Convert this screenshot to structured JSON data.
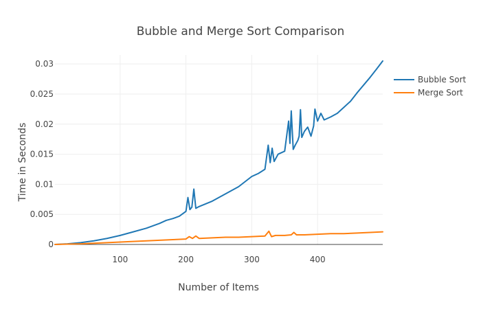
{
  "chart_data": {
    "type": "line",
    "title": "Bubble and Merge Sort Comparison",
    "xlabel": "Number of Items",
    "ylabel": "Time in Seconds",
    "xlim": [
      1,
      499
    ],
    "ylim": [
      0,
      0.0315
    ],
    "x_ticks": [
      100,
      200,
      300,
      400
    ],
    "y_ticks": [
      0,
      0.005,
      0.01,
      0.015,
      0.02,
      0.025,
      0.03
    ],
    "y_tick_labels": [
      "0",
      "0.005",
      "0.01",
      "0.015",
      "0.02",
      "0.025",
      "0.03"
    ],
    "grid": true,
    "legend_position": "top-right",
    "series": [
      {
        "name": "Bubble Sort",
        "color": "#1f77b4",
        "x": [
          1,
          20,
          40,
          60,
          80,
          100,
          120,
          140,
          160,
          170,
          180,
          190,
          200,
          203,
          206,
          209,
          212,
          215,
          220,
          240,
          260,
          280,
          300,
          310,
          320,
          325,
          328,
          331,
          334,
          340,
          350,
          356,
          358,
          360,
          363,
          366,
          370,
          372,
          374,
          376,
          380,
          385,
          390,
          394,
          396,
          400,
          405,
          410,
          420,
          430,
          440,
          450,
          460,
          470,
          480,
          490,
          499
        ],
        "y": [
          0.0,
          0.0001,
          0.0003,
          0.0006,
          0.001,
          0.0015,
          0.0021,
          0.0027,
          0.0035,
          0.004,
          0.0043,
          0.0047,
          0.0055,
          0.0078,
          0.0058,
          0.0062,
          0.0092,
          0.006,
          0.0063,
          0.0072,
          0.0084,
          0.0096,
          0.0113,
          0.0118,
          0.0125,
          0.0165,
          0.0136,
          0.016,
          0.0138,
          0.015,
          0.0155,
          0.0205,
          0.0168,
          0.0222,
          0.0158,
          0.0165,
          0.0173,
          0.018,
          0.0224,
          0.0178,
          0.0188,
          0.0195,
          0.018,
          0.0197,
          0.0225,
          0.0205,
          0.0218,
          0.0207,
          0.0212,
          0.0218,
          0.0228,
          0.0238,
          0.0252,
          0.0265,
          0.0278,
          0.0292,
          0.0305
        ]
      },
      {
        "name": "Merge Sort",
        "color": "#ff7f0e",
        "x": [
          1,
          20,
          40,
          60,
          80,
          100,
          120,
          140,
          160,
          180,
          200,
          205,
          210,
          215,
          220,
          240,
          260,
          280,
          300,
          320,
          326,
          330,
          336,
          350,
          360,
          364,
          368,
          380,
          400,
          420,
          440,
          460,
          480,
          499
        ],
        "y": [
          0.0,
          5e-05,
          0.0001,
          0.0002,
          0.0003,
          0.0004,
          0.0005,
          0.0006,
          0.0007,
          0.0008,
          0.0009,
          0.0013,
          0.001,
          0.0014,
          0.001,
          0.0011,
          0.0012,
          0.0012,
          0.0013,
          0.0014,
          0.0022,
          0.0013,
          0.0015,
          0.0015,
          0.0016,
          0.002,
          0.0016,
          0.0016,
          0.0017,
          0.0018,
          0.0018,
          0.0019,
          0.002,
          0.0021
        ]
      }
    ]
  }
}
